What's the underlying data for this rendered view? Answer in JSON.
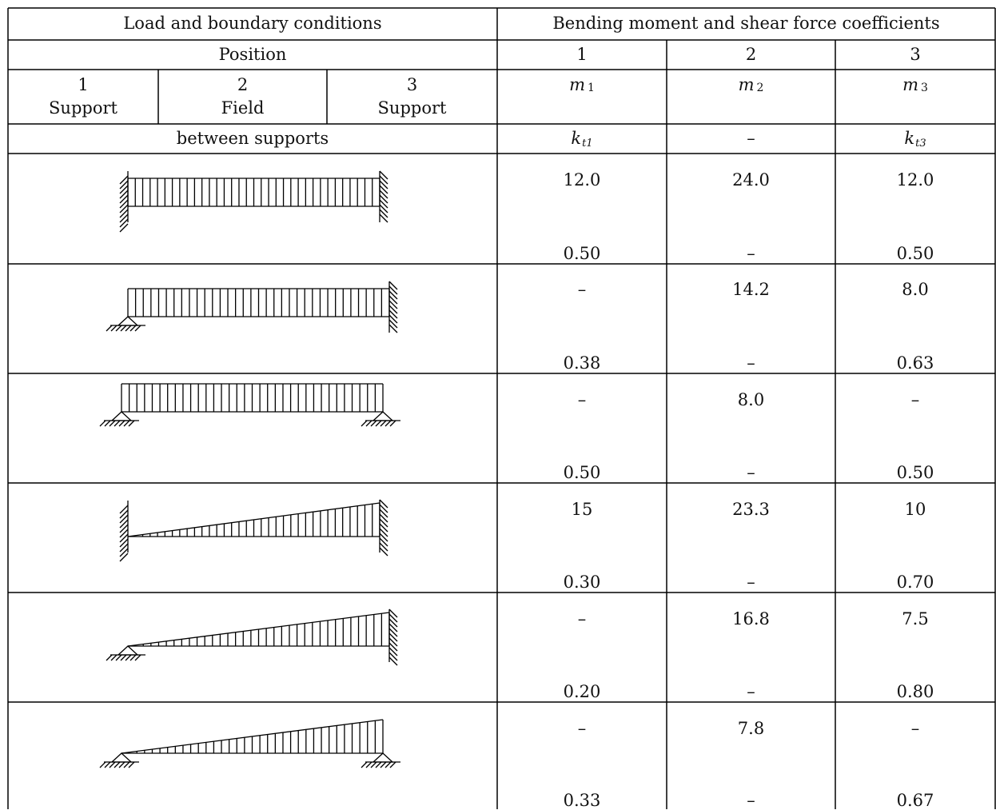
{
  "header": {
    "left_title": "Load and boundary conditions",
    "right_title": "Bending moment and shear force coefficients",
    "position_label": "Position",
    "col_numbers": [
      "1",
      "2",
      "3"
    ],
    "positions": [
      {
        "number": "1",
        "label": "Support"
      },
      {
        "number": "2",
        "label": "Field"
      },
      {
        "number": "3",
        "label": "Support"
      }
    ],
    "moment_symbols": [
      {
        "base": "m",
        "sub": "1"
      },
      {
        "base": "m",
        "sub": "2"
      },
      {
        "base": "m",
        "sub": "3"
      }
    ],
    "between_supports": "between supports",
    "shear_symbols": [
      {
        "base": "k",
        "sub": "t1"
      },
      {
        "base": "–",
        "sub": ""
      },
      {
        "base": "k",
        "sub": "t3"
      }
    ]
  },
  "rows": [
    {
      "case": "uniform load, fixed–fixed",
      "m": [
        "12.0",
        "24.0",
        "12.0"
      ],
      "k": [
        "0.50",
        "–",
        "0.50"
      ]
    },
    {
      "case": "uniform load, pinned–fixed",
      "m": [
        "–",
        "14.2",
        "8.0"
      ],
      "k": [
        "0.38",
        "–",
        "0.63"
      ]
    },
    {
      "case": "uniform load, pinned–pinned",
      "m": [
        "–",
        "8.0",
        "–"
      ],
      "k": [
        "0.50",
        "–",
        "0.50"
      ]
    },
    {
      "case": "triangular load, fixed–fixed",
      "m": [
        "15",
        "23.3",
        "10"
      ],
      "k": [
        "0.30",
        "–",
        "0.70"
      ]
    },
    {
      "case": "triangular load, pinned–fixed",
      "m": [
        "–",
        "16.8",
        "7.5"
      ],
      "k": [
        "0.20",
        "–",
        "0.80"
      ]
    },
    {
      "case": "triangular load, pinned–pinned",
      "m": [
        "–",
        "7.8",
        "–"
      ],
      "k": [
        "0.33",
        "–",
        "0.67"
      ]
    }
  ]
}
